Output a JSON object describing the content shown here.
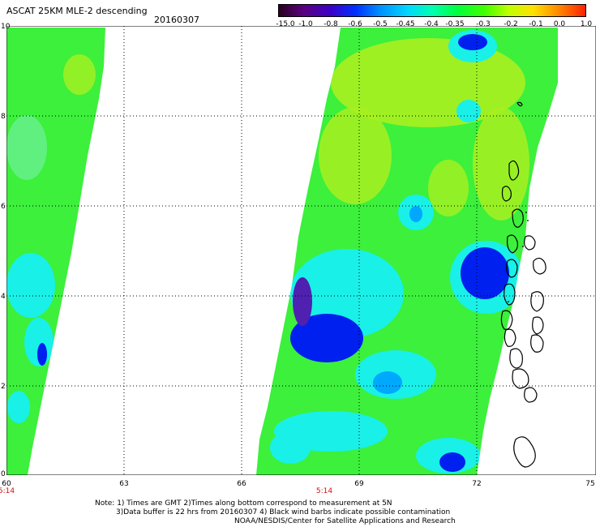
{
  "header": {
    "title": "ASCAT 25KM MLE-2 descending",
    "date": "20160307"
  },
  "colorbar": {
    "labels": [
      "-15.0",
      "-1.0",
      "-0.8",
      "-0.6",
      "-0.5",
      "-0.45",
      "-0.4",
      "-0.35",
      "-0.3",
      "-0.2",
      "-0.1",
      "0.0",
      "1.0"
    ],
    "colors": [
      "#2a0020",
      "#5a0080",
      "#3a00c8",
      "#0030ff",
      "#0090ff",
      "#00d8ff",
      "#00ffb0",
      "#00ff40",
      "#40ff00",
      "#c0ff00",
      "#ffe000",
      "#ff8000",
      "#ff2000"
    ]
  },
  "map": {
    "y_labels": [
      "10",
      "8",
      "6",
      "4",
      "2",
      "0"
    ],
    "x_labels": [
      "60",
      "63",
      "66",
      "69",
      "72",
      "75"
    ],
    "time_labels": [
      "5:14",
      "5:14"
    ],
    "colors": {
      "swath_green": "#3cf03c",
      "swath_yellowgreen": "#a8f020",
      "swath_cyan": "#19f0e8",
      "swath_blue": "#0020f0",
      "swath_purple": "#5020b0",
      "coast": "#000000"
    }
  },
  "footer": {
    "note1": "Note: 1) Times are GMT 2)Times along bottom correspond to measurement at 5N",
    "note2": "3)Data buffer is 22 hrs from 20160307 4) Black wind barbs indicate possible contamination",
    "note3": "NOAA/NESDIS/Center for Satellite Applications and Research"
  }
}
